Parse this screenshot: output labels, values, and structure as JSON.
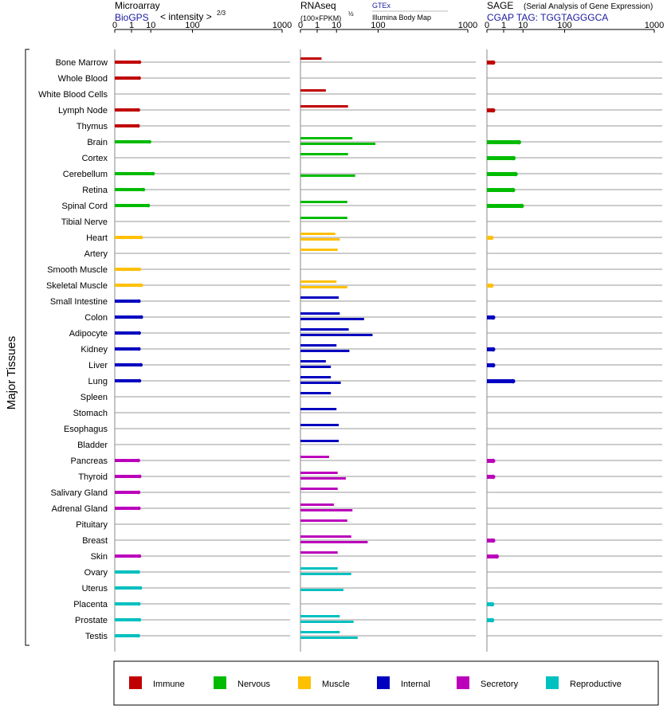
{
  "chart_data": {
    "type": "bar",
    "y_axis_label": "Major Tissues",
    "tissues": [
      "Bone Marrow",
      "Whole Blood",
      "White Blood Cells",
      "Lymph Node",
      "Thymus",
      "Brain",
      "Cortex",
      "Cerebellum",
      "Retina",
      "Spinal Cord",
      "Tibial Nerve",
      "Heart",
      "Artery",
      "Smooth Muscle",
      "Skeletal Muscle",
      "Small Intestine",
      "Colon",
      "Adipocyte",
      "Kidney",
      "Liver",
      "Lung",
      "Spleen",
      "Stomach",
      "Esophagus",
      "Bladder",
      "Pancreas",
      "Thyroid",
      "Salivary Gland",
      "Adrenal Gland",
      "Pituitary",
      "Breast",
      "Skin",
      "Ovary",
      "Uterus",
      "Placenta",
      "Prostate",
      "Testis"
    ],
    "tissue_groups": [
      "immune",
      "immune",
      "immune",
      "immune",
      "immune",
      "nervous",
      "nervous",
      "nervous",
      "nervous",
      "nervous",
      "nervous",
      "muscle",
      "muscle",
      "muscle",
      "muscle",
      "internal",
      "internal",
      "internal",
      "internal",
      "internal",
      "internal",
      "internal",
      "internal",
      "internal",
      "internal",
      "secretory",
      "secretory",
      "secretory",
      "secretory",
      "secretory",
      "secretory",
      "secretory",
      "reproductive",
      "reproductive",
      "reproductive",
      "reproductive",
      "reproductive"
    ],
    "group_colors": {
      "immune": "#c00000",
      "nervous": "#00bb00",
      "muscle": "#ffc000",
      "internal": "#0000c0",
      "secretory": "#bb00bb",
      "reproductive": "#00c0c0"
    },
    "legend": [
      {
        "key": "immune",
        "label": "Immune"
      },
      {
        "key": "nervous",
        "label": "Nervous"
      },
      {
        "key": "muscle",
        "label": "Muscle"
      },
      {
        "key": "internal",
        "label": "Internal"
      },
      {
        "key": "secretory",
        "label": "Secretory"
      },
      {
        "key": "reproductive",
        "label": "Reproductive"
      }
    ],
    "ticks": [
      0,
      1,
      10,
      100,
      1000
    ],
    "xlim": [
      0,
      1000
    ],
    "panels": [
      {
        "title": "Microarray",
        "subtitle_main": "BioGPS",
        "subtitle_note": "< intensity >",
        "subtitle_exponent": "2/3",
        "series": [
          {
            "name": "BioGPS",
            "values": [
              3.2,
              3.1,
              0,
              2.8,
              2.7,
              9,
              0,
              12,
              5,
              8,
              0,
              3.9,
              0,
              3.2,
              4,
              3,
              4,
              3.1,
              3,
              3.8,
              3.2,
              0,
              0,
              0,
              0,
              2.8,
              3.3,
              2.9,
              3,
              0,
              0,
              3.2,
              2.8,
              3.6,
              3,
              3.2,
              2.8
            ]
          }
        ]
      },
      {
        "title": "RNAseq",
        "subtitle_note": "(100×FPKM)",
        "subtitle_exponent": "½",
        "sources": [
          "GTEx",
          "Illumina Body Map"
        ],
        "series": [
          {
            "name": "GTEx",
            "values": [
              2,
              0,
              3.5,
              23,
              0,
              30,
              23,
              0,
              0,
              22,
              22,
              9,
              11,
              0,
              10,
              12,
              13,
              24,
              10,
              3.5,
              6,
              6,
              10,
              12,
              12,
              5,
              11,
              11,
              8,
              22,
              28,
              11,
              11,
              0,
              0,
              13,
              13
            ]
          },
          {
            "name": "Illumina Body Map",
            "values": [
              0,
              0,
              0,
              0,
              0,
              90,
              0,
              35,
              0,
              0,
              0,
              13,
              0,
              0,
              22,
              0,
              55,
              80,
              25,
              6,
              14,
              0,
              0,
              0,
              0,
              0,
              20,
              0,
              30,
              0,
              65,
              0,
              28,
              17,
              0,
              32,
              40
            ]
          }
        ]
      },
      {
        "title": "SAGE",
        "title_note": "(Serial Analysis of Gene Expression)",
        "subtitle_main": "CGAP TAG: TGGTAGGGCA",
        "series": [
          {
            "name": "CGAP",
            "values": [
              0.05,
              0,
              0,
              0.05,
              0,
              7,
              4,
              5,
              3.8,
              9,
              0,
              0.02,
              0,
              0,
              0.02,
              0,
              0.05,
              0,
              0.05,
              0.05,
              3.8,
              0,
              0,
              0,
              0,
              0.05,
              0.05,
              0,
              0,
              0,
              0.05,
              0.2,
              0,
              0,
              0.03,
              0.03,
              0
            ]
          }
        ]
      }
    ]
  }
}
